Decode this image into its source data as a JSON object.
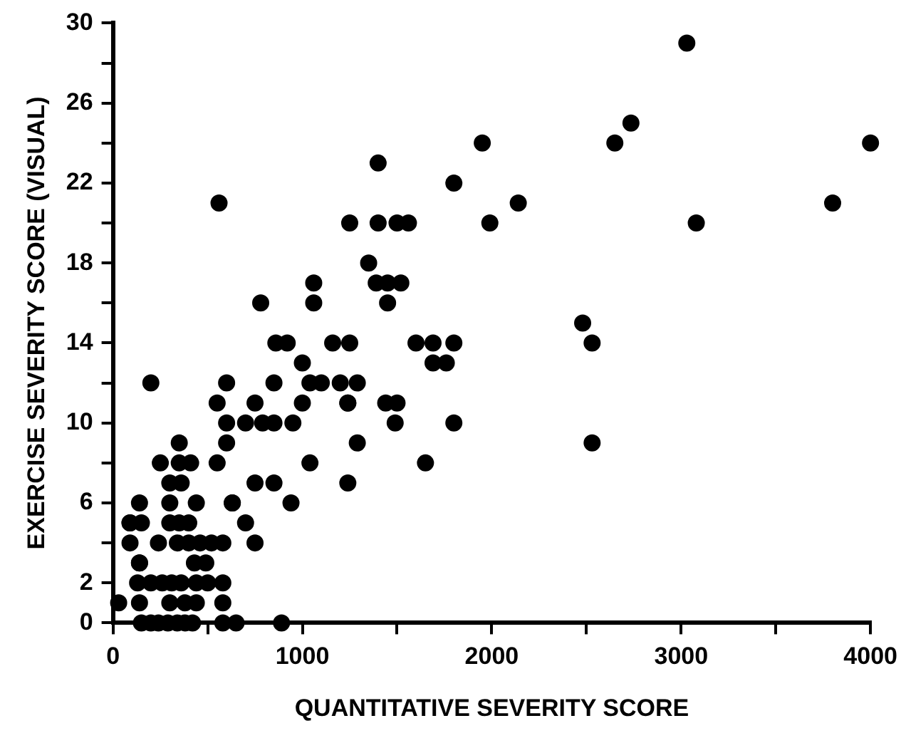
{
  "chart_data": {
    "type": "scatter",
    "xlabel": "QUANTITATIVE SEVERITY SCORE",
    "ylabel": "EXERCISE SEVERITY SCORE (VISUAL)",
    "xlim": [
      0,
      4000
    ],
    "ylim": [
      0,
      30
    ],
    "xticks": [
      0,
      {
        "value": 500,
        "label": null
      },
      1000,
      {
        "value": 1500,
        "label": null
      },
      2000,
      {
        "value": 2500,
        "label": null
      },
      3000,
      {
        "value": 3500,
        "label": null
      },
      4000
    ],
    "yticks": [
      0,
      2,
      {
        "value": 4,
        "label": null
      },
      6,
      {
        "value": 8,
        "label": null
      },
      10,
      {
        "value": 12,
        "label": null
      },
      14,
      {
        "value": 16,
        "label": null
      },
      18,
      {
        "value": 20,
        "label": null
      },
      22,
      {
        "value": 24,
        "label": null
      },
      26,
      {
        "value": 28,
        "label": null
      },
      30
    ],
    "grid": false,
    "legend": false,
    "marker": "circle",
    "series": [
      {
        "color": "#000000",
        "x": [
          3030,
          2735,
          2650,
          4000,
          3800,
          3080,
          1950,
          1400,
          1800,
          2140,
          1250,
          1400,
          1500,
          1560,
          1990,
          1350,
          1390,
          1450,
          1520,
          1450,
          2480,
          2530,
          1160,
          1250,
          1600,
          1690,
          1800,
          1690,
          1760,
          1200,
          1290,
          1240,
          1240,
          1440,
          1500,
          1490,
          1800,
          1290,
          2530,
          1650,
          1240,
          1000,
          200,
          600,
          850,
          1040,
          1100,
          550,
          750,
          1000,
          600,
          700,
          790,
          850,
          950,
          350,
          600,
          250,
          350,
          410,
          550,
          1040,
          300,
          360,
          750,
          850,
          140,
          300,
          440,
          630,
          630,
          940,
          90,
          90,
          150,
          300,
          350,
          400,
          700,
          90,
          240,
          340,
          400,
          460,
          520,
          580,
          750,
          140,
          140,
          430,
          490,
          130,
          200,
          260,
          310,
          360,
          440,
          500,
          30,
          140,
          300,
          380,
          440,
          580,
          580,
          150,
          200,
          240,
          290,
          340,
          380,
          420,
          580,
          650,
          890,
          560,
          1060,
          1060,
          780,
          860,
          920
        ],
        "values": [
          29,
          25,
          24,
          24,
          21,
          20,
          24,
          23,
          22,
          21,
          20,
          20,
          20,
          20,
          20,
          18,
          17,
          17,
          17,
          16,
          15,
          14,
          14,
          14,
          14,
          14,
          14,
          13,
          13,
          12,
          12,
          11,
          11,
          11,
          11,
          10,
          10,
          9,
          9,
          8,
          7,
          13,
          12,
          12,
          12,
          12,
          12,
          11,
          11,
          11,
          10,
          10,
          10,
          10,
          10,
          9,
          9,
          8,
          8,
          8,
          8,
          8,
          7,
          7,
          7,
          7,
          6,
          6,
          6,
          6,
          6,
          6,
          5,
          5,
          5,
          5,
          5,
          5,
          5,
          4,
          4,
          4,
          4,
          4,
          4,
          4,
          4,
          3,
          3,
          3,
          3,
          2,
          2,
          2,
          2,
          2,
          2,
          2,
          1,
          1,
          1,
          1,
          1,
          1,
          2,
          0,
          0,
          0,
          0,
          0,
          0,
          0,
          0,
          0,
          0,
          21,
          17,
          16,
          16,
          14,
          14
        ]
      }
    ]
  }
}
